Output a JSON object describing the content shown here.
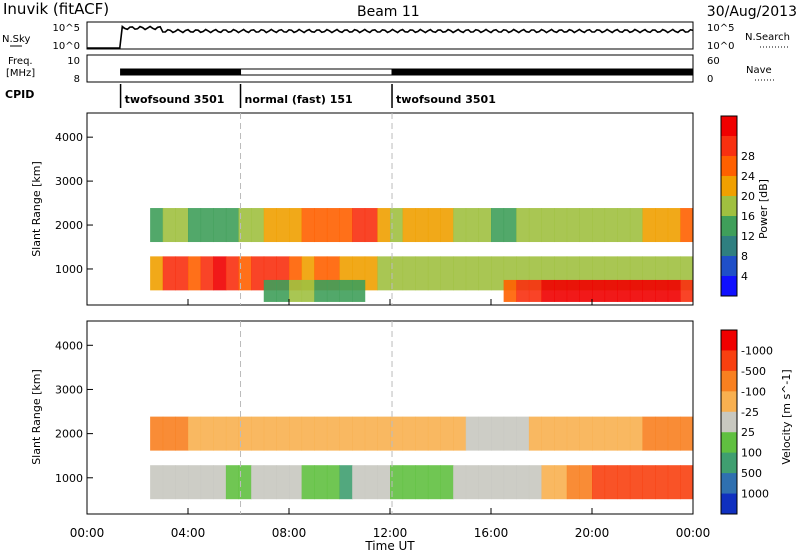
{
  "header": {
    "station": "Inuvik (fitACF)",
    "beam": "Beam 11",
    "date": "30/Aug/2013"
  },
  "noise_panel": {
    "left_label": "N.Sky",
    "left_ticks": [
      "10^5",
      "10^0"
    ],
    "right_ticks": [
      "10^5",
      "10^0"
    ],
    "right_label": "N.Search"
  },
  "freq_panel": {
    "left_label_1": "Freq.",
    "left_label_2": "[MHz]",
    "left_ticks": [
      "10",
      "8"
    ],
    "right_ticks": [
      "60",
      "0"
    ],
    "right_label": "Nave"
  },
  "cpid": {
    "label": "CPID",
    "segments": [
      {
        "name": "twofsound 3501",
        "start": 1.33,
        "end": 6.08
      },
      {
        "name": "normal (fast) 151",
        "start": 6.08,
        "end": 12.08
      },
      {
        "name": "twofsound 3501",
        "start": 12.08,
        "end": 24.0
      }
    ]
  },
  "chart_data": [
    {
      "type": "heatmap",
      "title": "",
      "xlabel": "Time UT",
      "ylabel": "Slant Range [km]",
      "x_ticks": [
        "00:00",
        "04:00",
        "08:00",
        "12:00",
        "16:00",
        "20:00",
        "00:00"
      ],
      "xlim": [
        0,
        24
      ],
      "y_ticks": [
        1000,
        2000,
        3000,
        4000
      ],
      "ylim": [
        180,
        4550
      ],
      "colorbar": {
        "label": "Power [dB]",
        "ticks": [
          "4",
          "8",
          "12",
          "16",
          "20",
          "24",
          "28"
        ],
        "colors": [
          "#1010ff",
          "#1f4fc8",
          "#2f7f80",
          "#3f9f5a",
          "#a0c040",
          "#f0a000",
          "#ff6000",
          "#f83010",
          "#f00000"
        ]
      },
      "series": [
        {
          "range_km": 900,
          "level": [
            0,
            0,
            0,
            0,
            0,
            4,
            6,
            6,
            5,
            6,
            7,
            6,
            5,
            6,
            6,
            6,
            5,
            4,
            5,
            5,
            4,
            4,
            4,
            3,
            3,
            3,
            3,
            3,
            3,
            3,
            3,
            3,
            3,
            3,
            3,
            3,
            3,
            3,
            3,
            3,
            3,
            3,
            3,
            3,
            3,
            3,
            3,
            3
          ]
        },
        {
          "range_km": 500,
          "level": [
            0,
            0,
            0,
            0,
            0,
            0,
            0,
            0,
            0,
            0,
            0,
            0,
            0,
            0,
            2,
            2,
            3,
            3,
            2,
            2,
            2,
            2,
            0,
            0,
            0,
            0,
            0,
            0,
            0,
            0,
            0,
            0,
            0,
            5,
            6,
            6,
            7,
            7,
            7,
            7,
            7,
            7,
            7,
            7,
            7,
            7,
            7,
            6
          ]
        },
        {
          "range_km": 2000,
          "level": [
            0,
            0,
            0,
            0,
            0,
            2,
            3,
            3,
            2,
            2,
            2,
            2,
            3,
            3,
            4,
            4,
            4,
            5,
            5,
            5,
            5,
            6,
            6,
            4,
            3,
            4,
            4,
            4,
            4,
            3,
            3,
            3,
            2,
            2,
            3,
            3,
            3,
            3,
            3,
            3,
            3,
            3,
            3,
            3,
            4,
            4,
            4,
            5
          ]
        }
      ]
    },
    {
      "type": "heatmap",
      "title": "",
      "xlabel": "Time UT",
      "ylabel": "Slant Range [km]",
      "x_ticks": [
        "00:00",
        "04:00",
        "08:00",
        "12:00",
        "16:00",
        "20:00",
        "00:00"
      ],
      "xlim": [
        0,
        24
      ],
      "y_ticks": [
        1000,
        2000,
        3000,
        4000
      ],
      "ylim": [
        180,
        4550
      ],
      "colorbar": {
        "label": "Velocity [m s^-1]",
        "ticks": [
          "1000",
          "500",
          "100",
          "25",
          "-25",
          "-100",
          "-500",
          "-1000"
        ],
        "colors": [
          "#1030c0",
          "#2f70b0",
          "#3f9f70",
          "#60c040",
          "#c8c8c0",
          "#f8b050",
          "#f88020",
          "#f84010",
          "#f00000"
        ]
      },
      "series": [
        {
          "range_km": 900,
          "velocity_class": [
            0,
            0,
            0,
            0,
            0,
            3,
            3,
            3,
            3,
            3,
            3,
            2,
            2,
            3,
            3,
            3,
            3,
            2,
            2,
            2,
            1,
            3,
            3,
            3,
            2,
            2,
            2,
            2,
            2,
            3,
            3,
            3,
            3,
            3,
            3,
            3,
            4,
            4,
            5,
            5,
            6,
            6,
            6,
            6,
            6,
            6,
            6,
            6
          ]
        },
        {
          "range_km": 2000,
          "velocity_class": [
            0,
            0,
            0,
            0,
            0,
            5,
            5,
            5,
            4,
            4,
            4,
            4,
            4,
            4,
            4,
            4,
            4,
            4,
            4,
            4,
            4,
            4,
            4,
            4,
            4,
            4,
            4,
            4,
            4,
            4,
            3,
            3,
            3,
            3,
            3,
            4,
            4,
            4,
            4,
            4,
            4,
            4,
            4,
            4,
            5,
            5,
            5,
            5
          ]
        }
      ]
    }
  ]
}
